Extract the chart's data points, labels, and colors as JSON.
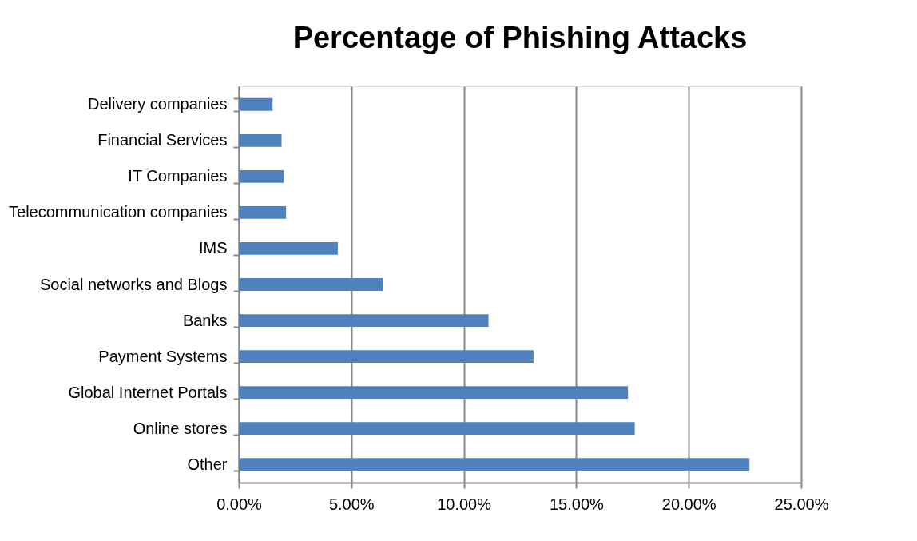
{
  "chart_data": {
    "type": "bar",
    "orientation": "horizontal",
    "title": "Percentage of Phishing Attacks",
    "categories": [
      "Delivery companies",
      "Financial Services",
      "IT Companies",
      "Telecommunication companies",
      "IMS",
      "Social networks and Blogs",
      "Banks",
      "Payment Systems",
      "Global Internet Portals",
      "Online stores",
      "Other"
    ],
    "values": [
      1.5,
      1.9,
      2.0,
      2.1,
      4.4,
      6.4,
      11.1,
      13.1,
      17.3,
      17.6,
      22.7
    ],
    "color": "#4f81bd",
    "xlim": [
      0,
      25
    ],
    "xticks": [
      {
        "value": 0,
        "label": "0.00%"
      },
      {
        "value": 5,
        "label": "5.00%"
      },
      {
        "value": 10,
        "label": "10.00%"
      },
      {
        "value": 15,
        "label": "15.00%"
      },
      {
        "value": 20,
        "label": "20.00%"
      },
      {
        "value": 25,
        "label": "25.00%"
      }
    ],
    "grid": "x"
  }
}
